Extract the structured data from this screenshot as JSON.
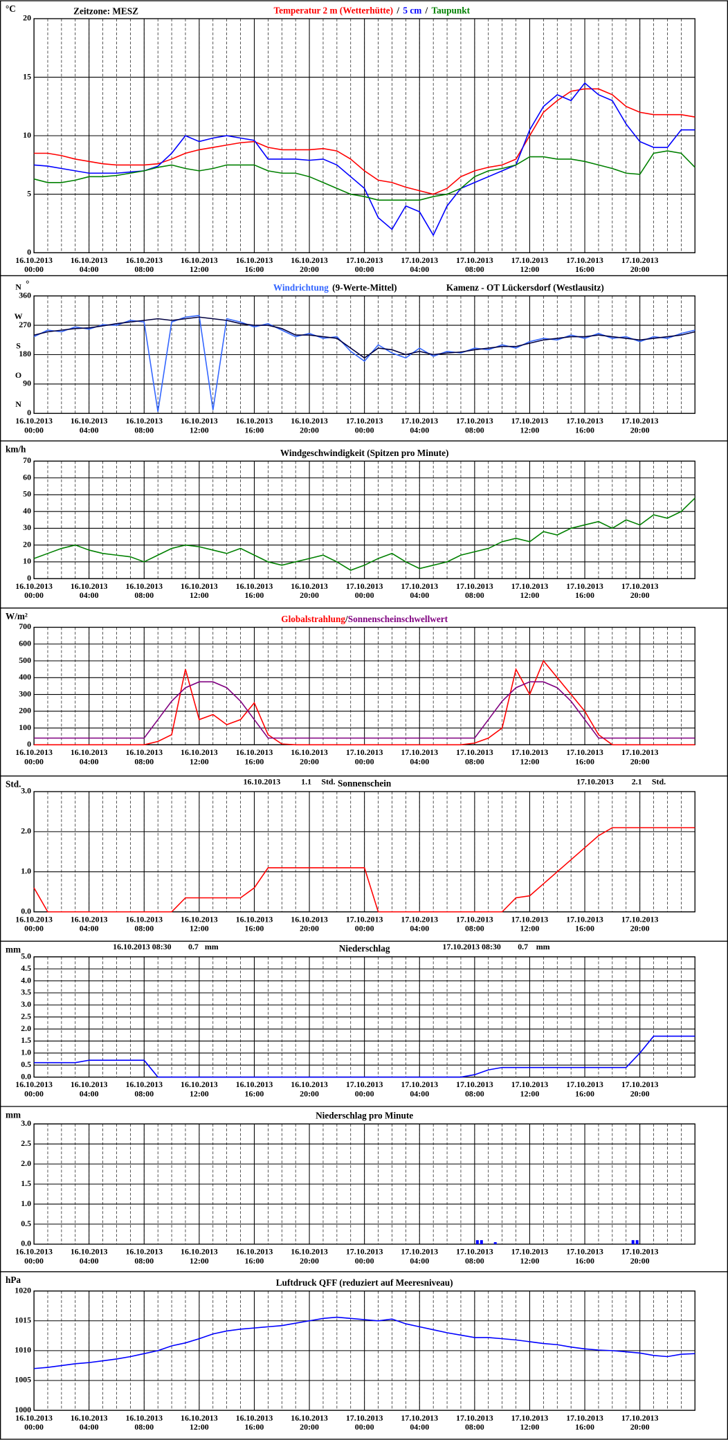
{
  "time_axis": {
    "xlim": [
      0,
      48
    ],
    "x": [
      0,
      1,
      2,
      3,
      4,
      5,
      6,
      7,
      8,
      9,
      10,
      11,
      12,
      13,
      14,
      15,
      16,
      17,
      18,
      19,
      20,
      21,
      22,
      23,
      24,
      25,
      26,
      27,
      28,
      29,
      30,
      31,
      32,
      33,
      34,
      35,
      36,
      37,
      38,
      39,
      40,
      41,
      42,
      43,
      44,
      45,
      46,
      47,
      48
    ],
    "xticks": [
      {
        "value": 0,
        "label": "00:00",
        "date": "16.10.2013"
      },
      {
        "value": 4,
        "label": "04:00",
        "date": "16.10.2013"
      },
      {
        "value": 8,
        "label": "08:00",
        "date": "16.10.2013"
      },
      {
        "value": 12,
        "label": "12:00",
        "date": "16.10.2013"
      },
      {
        "value": 16,
        "label": "16:00",
        "date": "16.10.2013"
      },
      {
        "value": 20,
        "label": "20:00",
        "date": "16.10.2013"
      },
      {
        "value": 24,
        "label": "00:00",
        "date": "17.10.2013"
      },
      {
        "value": 28,
        "label": "04:00",
        "date": "17.10.2013"
      },
      {
        "value": 32,
        "label": "08:00",
        "date": "17.10.2013"
      },
      {
        "value": 36,
        "label": "12:00",
        "date": "17.10.2013"
      },
      {
        "value": 40,
        "label": "16:00",
        "date": "17.10.2013"
      },
      {
        "value": 44,
        "label": "20:00",
        "date": "17.10.2013"
      }
    ]
  },
  "chart_data": [
    {
      "type": "line",
      "unit": "°C",
      "timezone": "Zeitzone: MESZ",
      "legend_separator": "/",
      "grid": true,
      "ylim": [
        0,
        20
      ],
      "yticks": [
        0,
        5,
        10,
        15,
        20
      ],
      "series": [
        {
          "name": "Temperatur 2 m (Wetterhütte)",
          "color": "#ff0000",
          "values": [
            8.5,
            8.5,
            8.3,
            8.0,
            7.8,
            7.6,
            7.5,
            7.5,
            7.5,
            7.6,
            8.0,
            8.5,
            8.8,
            9.0,
            9.2,
            9.4,
            9.5,
            9.0,
            8.8,
            8.8,
            8.8,
            8.9,
            8.7,
            8.0,
            7.0,
            6.2,
            6.0,
            5.6,
            5.3,
            5.0,
            5.5,
            6.5,
            7.0,
            7.3,
            7.5,
            8.0,
            10.0,
            12.0,
            13.0,
            13.8,
            14.0,
            14.0,
            13.5,
            12.5,
            12.0,
            11.8,
            11.8,
            11.8,
            11.6
          ]
        },
        {
          "name": "5 cm",
          "color": "#0000ff",
          "values": [
            7.5,
            7.4,
            7.2,
            7.0,
            6.8,
            6.8,
            6.8,
            6.9,
            7.0,
            7.4,
            8.5,
            10.0,
            9.5,
            9.8,
            10.0,
            9.8,
            9.6,
            8.0,
            8.0,
            8.0,
            7.9,
            8.0,
            7.5,
            6.5,
            5.5,
            3.0,
            2.0,
            4.0,
            3.5,
            1.5,
            4.0,
            5.5,
            6.0,
            6.5,
            7.0,
            7.5,
            10.5,
            12.5,
            13.5,
            13.0,
            14.5,
            13.5,
            13.0,
            11.0,
            9.5,
            9.0,
            9.0,
            10.5,
            10.5
          ]
        },
        {
          "name": "Taupunkt",
          "color": "#008000",
          "values": [
            6.3,
            6.0,
            6.0,
            6.2,
            6.5,
            6.5,
            6.6,
            6.8,
            7.0,
            7.3,
            7.5,
            7.2,
            7.0,
            7.2,
            7.5,
            7.5,
            7.5,
            7.0,
            6.8,
            6.8,
            6.5,
            6.0,
            5.5,
            5.0,
            4.8,
            4.5,
            4.5,
            4.5,
            4.5,
            4.8,
            5.0,
            5.5,
            6.5,
            7.0,
            7.2,
            7.5,
            8.2,
            8.2,
            8.0,
            8.0,
            7.8,
            7.5,
            7.2,
            6.8,
            6.7,
            8.5,
            8.7,
            8.5,
            7.3
          ]
        }
      ]
    },
    {
      "type": "line",
      "unit": "°",
      "location": "Kamenz - OT Lückersdorf (Westlausitz)",
      "grid": true,
      "ylim": [
        0,
        360
      ],
      "yticks": [
        0,
        90,
        180,
        270,
        360
      ],
      "compass": [
        {
          "value": 0,
          "label": "N"
        },
        {
          "value": 90,
          "label": "O"
        },
        {
          "value": 180,
          "label": "S"
        },
        {
          "value": 270,
          "label": "W"
        },
        {
          "value": 360,
          "label": "N"
        }
      ],
      "series": [
        {
          "name": "Windrichtung",
          "color": "#3366ff",
          "values": [
            235,
            255,
            250,
            265,
            258,
            272,
            270,
            285,
            280,
            5,
            280,
            295,
            300,
            10,
            290,
            280,
            265,
            275,
            255,
            235,
            245,
            230,
            235,
            190,
            160,
            210,
            185,
            170,
            200,
            175,
            190,
            185,
            200,
            195,
            210,
            200,
            220,
            230,
            225,
            240,
            230,
            245,
            230,
            235,
            220,
            235,
            230,
            245,
            255
          ]
        },
        {
          "name": "(9-Werte-Mittel)",
          "color": "#000040",
          "values": [
            240,
            250,
            255,
            260,
            262,
            268,
            275,
            280,
            285,
            290,
            285,
            290,
            295,
            290,
            285,
            275,
            270,
            270,
            260,
            240,
            240,
            235,
            230,
            200,
            170,
            200,
            195,
            180,
            190,
            180,
            185,
            188,
            195,
            200,
            205,
            205,
            215,
            225,
            230,
            235,
            235,
            240,
            235,
            230,
            225,
            230,
            235,
            240,
            250
          ]
        }
      ]
    },
    {
      "type": "line",
      "unit": "km/h",
      "title": "Windgeschwindigkeit (Spitzen pro Minute)",
      "grid": true,
      "ylim": [
        0,
        70
      ],
      "yticks": [
        0,
        10,
        20,
        30,
        40,
        50,
        60,
        70
      ],
      "series": [
        {
          "name": "Windgeschwindigkeit",
          "color": "#008000",
          "values": [
            12,
            15,
            18,
            20,
            17,
            15,
            14,
            13,
            10,
            14,
            18,
            20,
            19,
            17,
            15,
            18,
            14,
            10,
            8,
            10,
            12,
            14,
            10,
            5,
            8,
            12,
            15,
            10,
            6,
            8,
            10,
            14,
            16,
            18,
            22,
            24,
            22,
            28,
            26,
            30,
            32,
            34,
            30,
            35,
            32,
            38,
            36,
            40,
            48
          ]
        }
      ]
    },
    {
      "type": "line",
      "unit": "W/m²",
      "legend_separator": "/",
      "grid": true,
      "ylim": [
        0,
        700
      ],
      "yticks": [
        0,
        100,
        200,
        300,
        400,
        500,
        600,
        700
      ],
      "series": [
        {
          "name": "Globalstrahlung",
          "color": "#ff0000",
          "values": [
            0,
            0,
            0,
            0,
            0,
            0,
            0,
            0,
            0,
            20,
            60,
            450,
            150,
            180,
            120,
            150,
            250,
            60,
            5,
            0,
            0,
            0,
            0,
            0,
            0,
            0,
            0,
            0,
            0,
            0,
            0,
            0,
            10,
            40,
            100,
            450,
            300,
            500,
            400,
            300,
            200,
            60,
            0,
            0,
            0,
            0,
            0,
            0,
            0
          ]
        },
        {
          "name": "Sonnenscheinschwellwert",
          "color": "#800080",
          "values": [
            40,
            40,
            40,
            40,
            40,
            40,
            40,
            40,
            40,
            150,
            260,
            340,
            375,
            375,
            340,
            260,
            150,
            40,
            40,
            40,
            40,
            40,
            40,
            40,
            40,
            40,
            40,
            40,
            40,
            40,
            40,
            40,
            40,
            150,
            260,
            340,
            375,
            375,
            340,
            260,
            150,
            40,
            40,
            40,
            40,
            40,
            40,
            40,
            40
          ]
        }
      ]
    },
    {
      "type": "line",
      "unit": "Std.",
      "title": "Sonnenschein",
      "grid": true,
      "ylim": [
        0,
        3
      ],
      "yticks": [
        {
          "value": 0,
          "label": "0.0"
        },
        {
          "value": 1,
          "label": "1.0"
        },
        {
          "value": 2,
          "label": "2.0"
        },
        {
          "value": 3,
          "label": "3.0"
        }
      ],
      "annotations": [
        {
          "date": "16.10.2013",
          "value": 1.1,
          "unit": "Std."
        },
        {
          "date": "17.10.2013",
          "value": 2.1,
          "unit": "Std."
        }
      ],
      "series": [
        {
          "name": "Sonnenschein",
          "color": "#ff0000",
          "values": [
            0.6,
            0,
            0,
            0,
            0,
            0,
            0,
            0,
            0,
            0,
            0,
            0.35,
            0.35,
            0.35,
            0.35,
            0.35,
            0.6,
            1.1,
            1.1,
            1.1,
            1.1,
            1.1,
            1.1,
            1.1,
            1.1,
            0,
            0,
            0,
            0,
            0,
            0,
            0,
            0,
            0,
            0,
            0.35,
            0.4,
            0.7,
            1.0,
            1.3,
            1.6,
            1.9,
            2.1,
            2.1,
            2.1,
            2.1,
            2.1,
            2.1,
            2.1
          ]
        }
      ]
    },
    {
      "type": "line",
      "unit": "mm",
      "title": "Niederschlag",
      "grid": true,
      "ylim": [
        0,
        5
      ],
      "yticks": [
        {
          "value": 0,
          "label": "0.0"
        },
        0.5,
        {
          "value": 1,
          "label": "1.0"
        },
        1.5,
        {
          "value": 2,
          "label": "2.0"
        },
        2.5,
        {
          "value": 3,
          "label": "3.0"
        },
        3.5,
        {
          "value": 4,
          "label": "4.0"
        },
        4.5,
        {
          "value": 5,
          "label": "5.0"
        }
      ],
      "annotations": [
        {
          "date": "16.10.2013 08:30",
          "value": 0.7,
          "unit": "mm"
        },
        {
          "date": "17.10.2013 08:30",
          "value": 0.7,
          "unit": "mm"
        }
      ],
      "series": [
        {
          "name": "Niederschlag",
          "color": "#0000ff",
          "values": [
            0.6,
            0.6,
            0.6,
            0.6,
            0.7,
            0.7,
            0.7,
            0.7,
            0.7,
            0,
            0,
            0,
            0,
            0,
            0,
            0,
            0,
            0,
            0,
            0,
            0,
            0,
            0,
            0,
            0,
            0,
            0,
            0,
            0,
            0,
            0,
            0,
            0.1,
            0.3,
            0.4,
            0.4,
            0.4,
            0.4,
            0.4,
            0.4,
            0.4,
            0.4,
            0.4,
            0.4,
            1.0,
            1.7,
            1.7,
            1.7,
            1.7
          ]
        }
      ]
    },
    {
      "type": "bar",
      "unit": "mm",
      "title": "Niederschlag pro Minute",
      "grid": true,
      "color": "#0000ff",
      "ylim": [
        0,
        3
      ],
      "yticks": [
        {
          "value": 0,
          "label": "0.0"
        },
        0.5,
        {
          "value": 1,
          "label": "1.0"
        },
        1.5,
        {
          "value": 2,
          "label": "2.0"
        },
        2.5,
        {
          "value": 3,
          "label": "3.0"
        }
      ],
      "x": [
        32.2,
        32.5,
        33.5,
        43.5,
        43.8
      ],
      "values": [
        0.1,
        0.1,
        0.05,
        0.1,
        0.1
      ]
    },
    {
      "type": "line",
      "unit": "hPa",
      "title": "Luftdruck QFF (reduziert auf Meeresniveau)",
      "grid": true,
      "ylim": [
        1000,
        1020
      ],
      "yticks": [
        1000,
        1005,
        1010,
        1015,
        1020
      ],
      "series": [
        {
          "name": "Luftdruck",
          "color": "#0000ff",
          "values": [
            1007,
            1007.2,
            1007.5,
            1007.8,
            1008,
            1008.3,
            1008.6,
            1009,
            1009.5,
            1010,
            1010.8,
            1011.3,
            1012,
            1012.8,
            1013.3,
            1013.6,
            1013.8,
            1014,
            1014.2,
            1014.6,
            1015,
            1015.4,
            1015.6,
            1015.4,
            1015.2,
            1015,
            1015.3,
            1014.5,
            1014,
            1013.5,
            1013,
            1012.6,
            1012.2,
            1012.2,
            1012,
            1011.8,
            1011.5,
            1011.2,
            1011,
            1010.6,
            1010.3,
            1010.1,
            1010,
            1009.8,
            1009.6,
            1009.2,
            1009,
            1009.4,
            1009.5
          ]
        }
      ]
    }
  ]
}
